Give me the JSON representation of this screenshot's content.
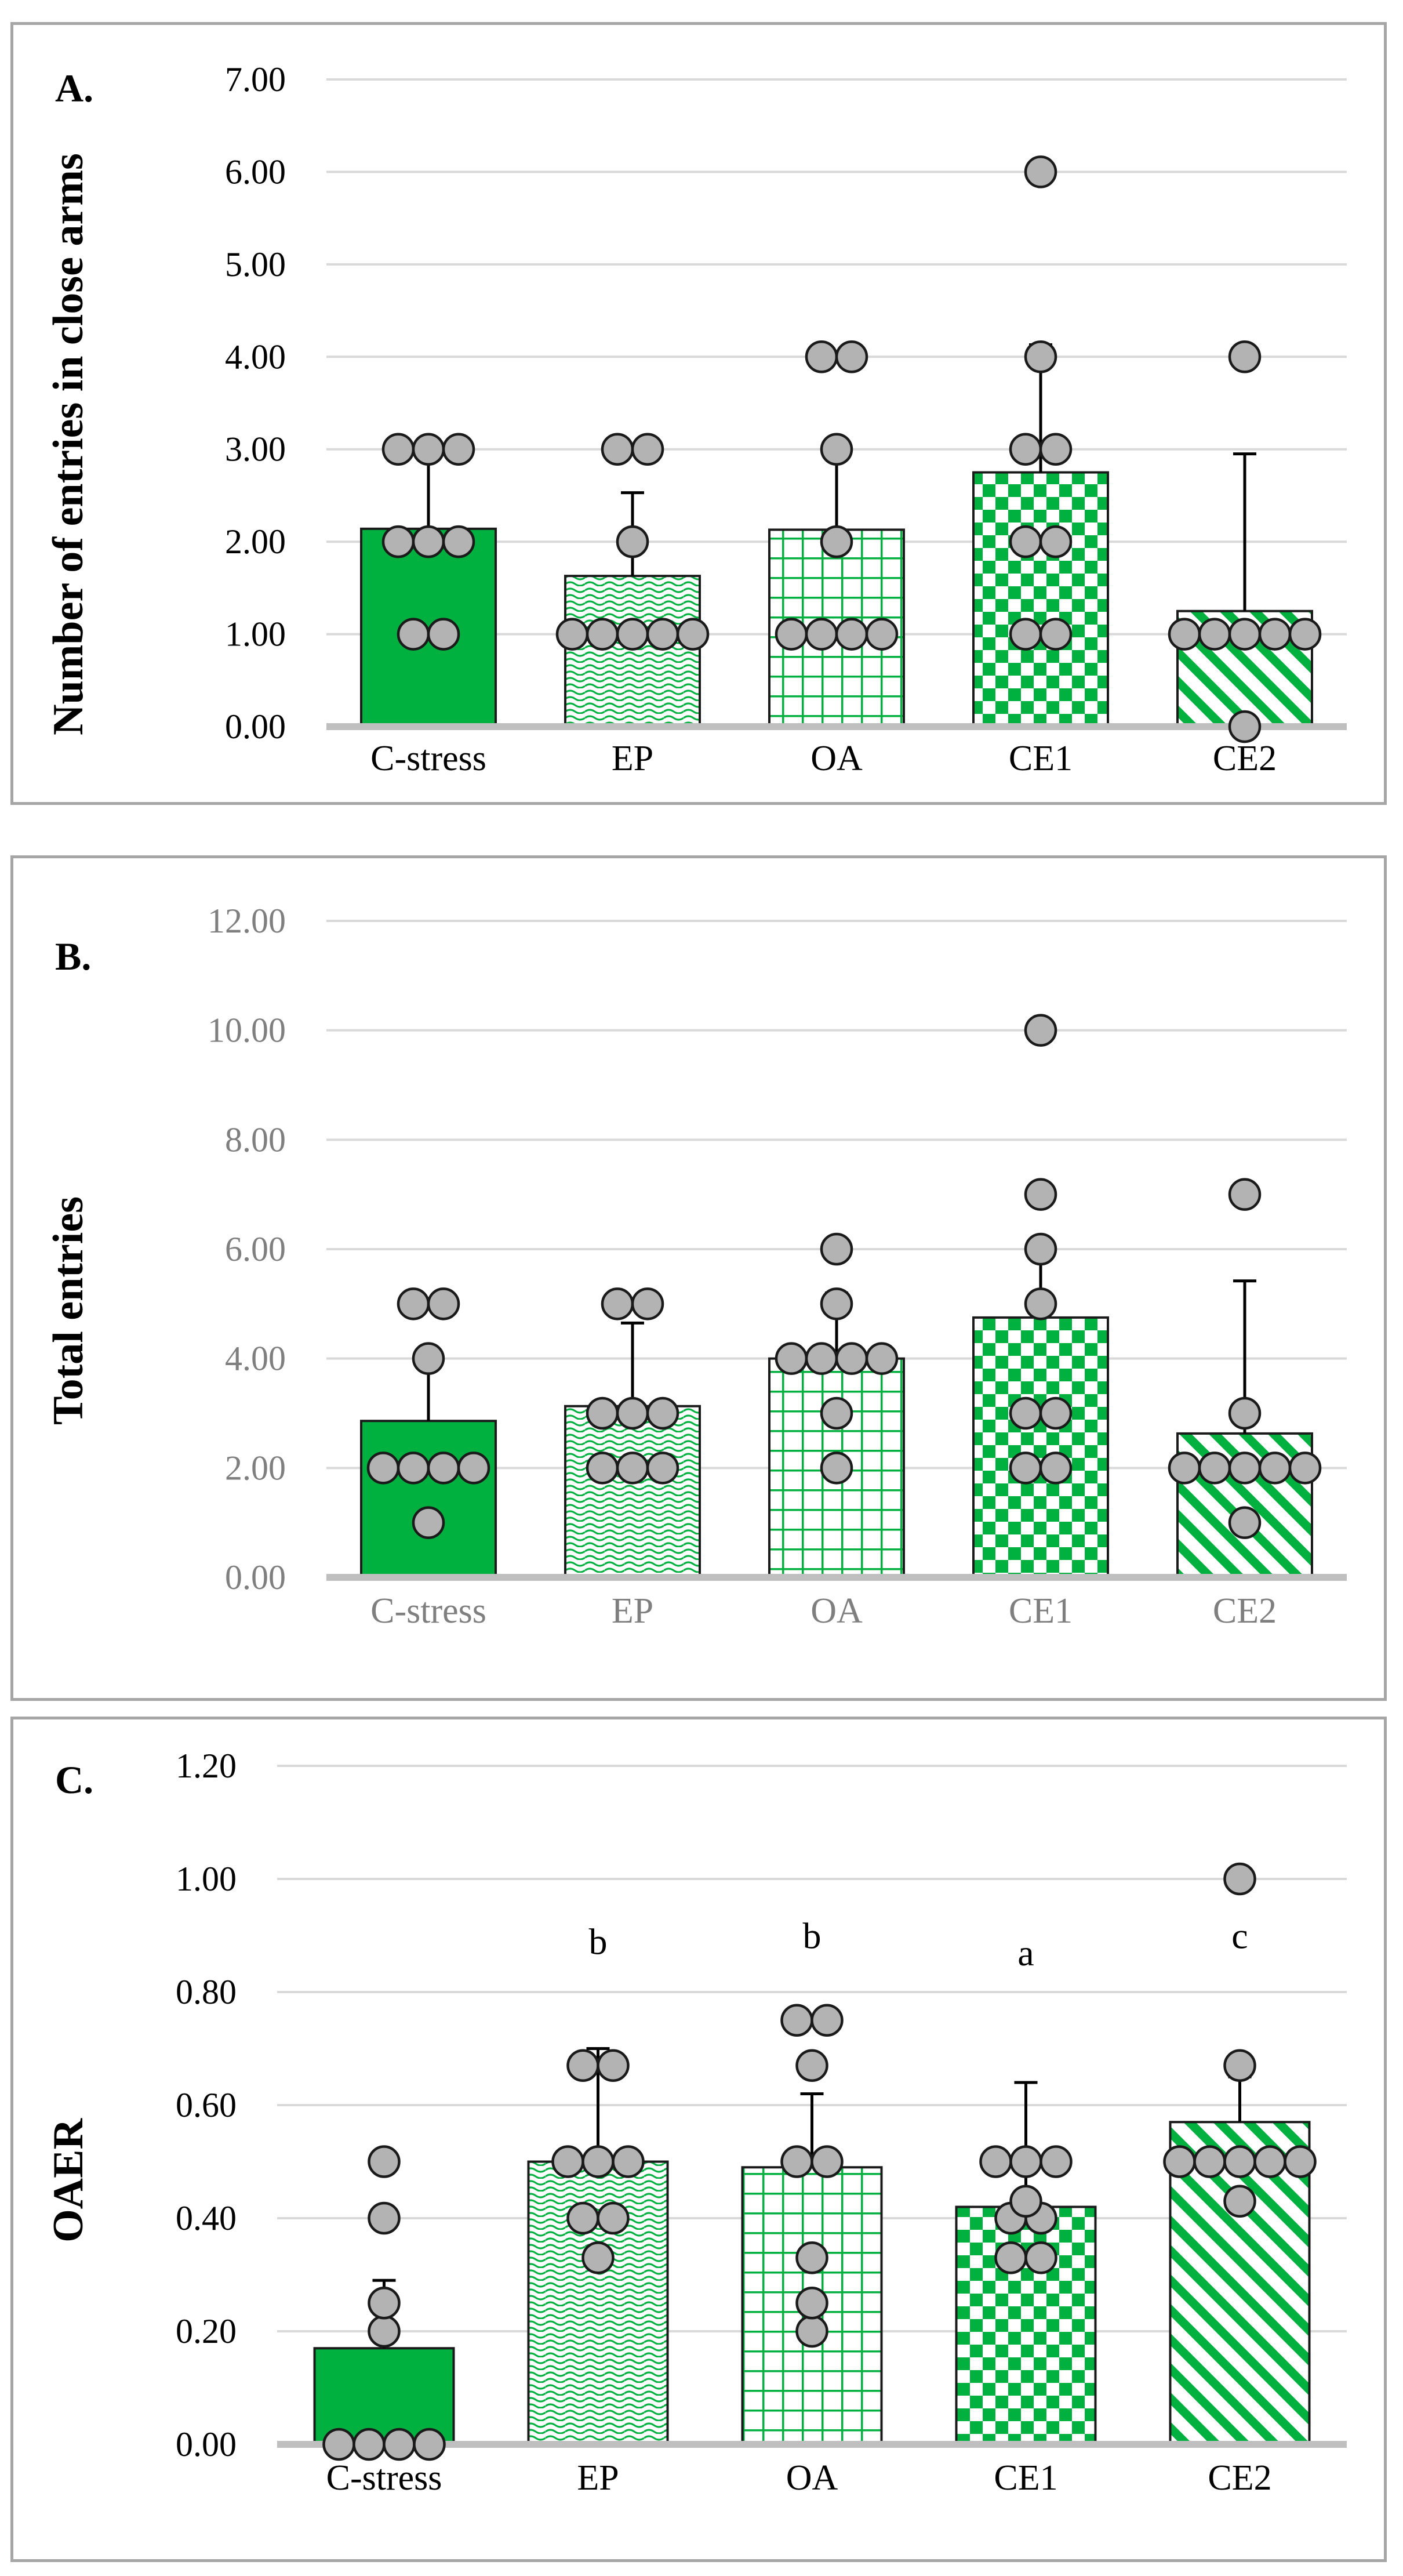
{
  "colors": {
    "bar_fill": "#00b140",
    "bar_stroke": "#1a1a1a",
    "point_fill": "#b3b3b3",
    "point_stroke": "#1a1a1a",
    "grid": "#d9d9d9",
    "axis": "#bfbfbf",
    "panel_border": "#a6a6a6",
    "tick_dark": "#000000",
    "tick_grey": "#7f7f7f"
  },
  "chart_data": [
    {
      "type": "bar",
      "panel_label": "A.",
      "ylabel": "Number of entries in close arms",
      "categories": [
        "C-stress",
        "EP",
        "OA",
        "CE1",
        "CE2"
      ],
      "patterns": [
        "solid",
        "wave",
        "grid",
        "checker",
        "diagonal"
      ],
      "y_ticks": [
        "0.00",
        "1.00",
        "2.00",
        "3.00",
        "4.00",
        "5.00",
        "6.00",
        "7.00"
      ],
      "ylim": [
        0,
        7
      ],
      "grid": true,
      "values": [
        2.14,
        1.63,
        2.13,
        2.75,
        1.25
      ],
      "error_upper": [
        2.9,
        2.53,
        3.02,
        4.13,
        2.95
      ],
      "points": [
        [
          1,
          1,
          2,
          2,
          2,
          3,
          3,
          3
        ],
        [
          1,
          1,
          1,
          1,
          1,
          2,
          3,
          3
        ],
        [
          1,
          1,
          1,
          1,
          2,
          3,
          4,
          4
        ],
        [
          1,
          1,
          2,
          2,
          3,
          3,
          4,
          6
        ],
        [
          0,
          1,
          1,
          1,
          1,
          1,
          4
        ]
      ],
      "annotations": [
        "",
        "",
        "",
        "",
        ""
      ],
      "tick_color": "dark"
    },
    {
      "type": "bar",
      "panel_label": "B.",
      "ylabel": "Total entries",
      "categories": [
        "C-stress",
        "EP",
        "OA",
        "CE1",
        "CE2"
      ],
      "patterns": [
        "solid",
        "wave",
        "grid",
        "checker",
        "diagonal"
      ],
      "y_ticks": [
        "0.00",
        "2.00",
        "4.00",
        "6.00",
        "8.00",
        "10.00",
        "12.00"
      ],
      "ylim": [
        0,
        12
      ],
      "grid": true,
      "values": [
        2.86,
        3.13,
        4.0,
        4.75,
        2.63
      ],
      "error_upper": [
        4.0,
        4.65,
        5.2,
        5.92,
        5.42
      ],
      "points": [
        [
          1,
          2,
          2,
          2,
          2,
          4,
          5,
          5
        ],
        [
          2,
          2,
          2,
          3,
          3,
          3,
          5,
          5
        ],
        [
          2,
          3,
          4,
          4,
          4,
          4,
          5,
          6
        ],
        [
          2,
          2,
          3,
          3,
          5,
          6,
          7,
          10
        ],
        [
          1,
          2,
          2,
          2,
          2,
          2,
          3,
          7
        ]
      ],
      "annotations": [
        "",
        "",
        "",
        "",
        ""
      ],
      "tick_color": "grey"
    },
    {
      "type": "bar",
      "panel_label": "C.",
      "ylabel": "OAER",
      "categories": [
        "C-stress",
        "EP",
        "OA",
        "CE1",
        "CE2"
      ],
      "patterns": [
        "solid",
        "wave",
        "grid",
        "checker",
        "diagonal"
      ],
      "y_ticks": [
        "0.00",
        "0.20",
        "0.40",
        "0.60",
        "0.80",
        "1.00",
        "1.20"
      ],
      "ylim": [
        0,
        1.2
      ],
      "grid": true,
      "values": [
        0.17,
        0.5,
        0.49,
        0.42,
        0.57
      ],
      "error_upper": [
        0.29,
        0.7,
        0.62,
        0.64,
        0.65
      ],
      "points": [
        [
          0,
          0,
          0,
          0,
          0.2,
          0.25,
          0.4,
          0.5
        ],
        [
          0.33,
          0.4,
          0.4,
          0.5,
          0.5,
          0.5,
          0.67,
          0.67
        ],
        [
          0.2,
          0.25,
          0.33,
          0.5,
          0.5,
          0.67,
          0.75,
          0.75
        ],
        [
          0.33,
          0.33,
          0.4,
          0.4,
          0.43,
          0.5,
          0.5,
          0.5
        ],
        [
          0.43,
          0.5,
          0.5,
          0.5,
          0.5,
          0.5,
          0.67,
          1.0
        ]
      ],
      "annotations": [
        "",
        "b",
        "b",
        "a",
        "c"
      ],
      "tick_color": "dark"
    }
  ]
}
